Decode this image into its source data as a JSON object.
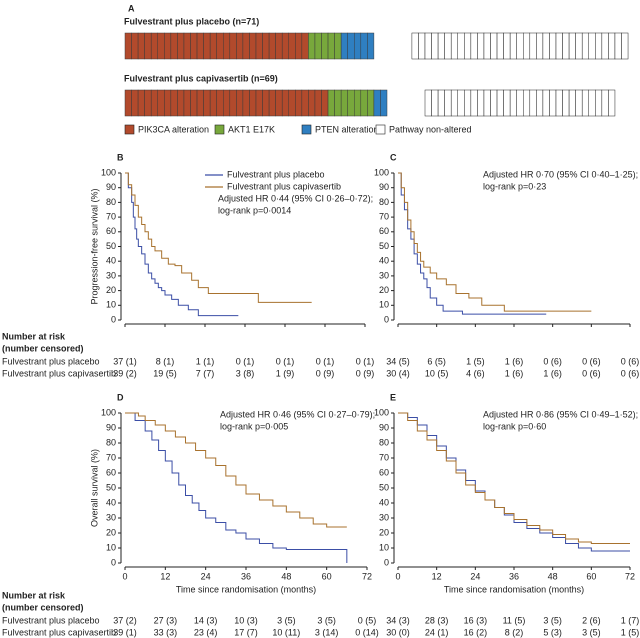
{
  "chart_data": [
    {
      "type": "strip",
      "label": "A",
      "series": [
        {
          "name": "PIK3CA alteration",
          "color": "#b24a2c"
        },
        {
          "name": "AKT1 E17K",
          "color": "#78a83c"
        },
        {
          "name": "PTEN alteration",
          "color": "#2f7fc1"
        },
        {
          "name": "Pathway non-altered",
          "color": "#ffffff"
        }
      ],
      "groups": [
        {
          "title": "Fulvestrant plus placebo (n=71)",
          "values": [
            28,
            5,
            5,
            33
          ]
        },
        {
          "title": "Fulvestrant plus capivasertib (n=69)",
          "values": [
            31,
            7,
            2,
            29
          ]
        }
      ]
    },
    {
      "type": "km",
      "label": "B",
      "y_label": "Progression-free survival (%)",
      "xlim": [
        0,
        72
      ],
      "xticks": [
        0,
        12,
        24,
        36,
        48,
        60,
        72
      ],
      "ylim": [
        0,
        100
      ],
      "yticks": [
        0,
        10,
        20,
        30,
        40,
        50,
        60,
        70,
        80,
        90,
        100
      ],
      "annotation": [
        "Adjusted HR 0·44 (95% CI 0·26–0·72);",
        "log-rank p=0·0014"
      ],
      "series": [
        {
          "name": "Fulvestrant plus placebo",
          "color": "#3b4ea6",
          "x": [
            0,
            1,
            2,
            2.5,
            3,
            3.5,
            4,
            5,
            6,
            7,
            8,
            9,
            10,
            11,
            12,
            14,
            16,
            19,
            22,
            25,
            34
          ],
          "values": [
            100,
            90,
            80,
            70,
            62,
            55,
            50,
            45,
            38,
            32,
            28,
            25,
            22,
            20,
            17,
            14,
            10,
            7,
            3,
            3,
            3
          ]
        },
        {
          "name": "Fulvestrant plus capivasertib",
          "color": "#a8722e",
          "x": [
            0,
            1,
            2,
            3,
            4,
            5,
            6,
            7,
            8,
            9,
            11,
            13,
            15,
            17,
            20,
            22,
            25,
            30,
            40,
            56
          ],
          "values": [
            100,
            92,
            85,
            78,
            70,
            65,
            60,
            55,
            50,
            47,
            42,
            38,
            37,
            32,
            27,
            22,
            18,
            18,
            12,
            12
          ]
        }
      ],
      "risk_header": [
        "Number at risk",
        "(number censored)"
      ],
      "risk_row_labels": [
        "Fulvestrant plus placebo",
        "Fulvestrant plus capivasertib"
      ],
      "risk": [
        [
          "37 (1)",
          "8 (1)",
          "1 (1)",
          "0 (1)",
          "0 (1)",
          "0 (1)",
          "0 (1)"
        ],
        [
          "39 (2)",
          "19 (5)",
          "7 (7)",
          "3 (8)",
          "1 (9)",
          "0 (9)",
          "0 (9)"
        ]
      ]
    },
    {
      "type": "km",
      "label": "C",
      "xlim": [
        0,
        72
      ],
      "xticks": [
        0,
        12,
        24,
        36,
        48,
        60,
        72
      ],
      "ylim": [
        0,
        100
      ],
      "yticks": [
        0,
        10,
        20,
        30,
        40,
        50,
        60,
        70,
        80,
        90,
        100
      ],
      "annotation": [
        "Adjusted HR 0·70 (95% CI 0·40–1·25);",
        "log-rank p=0·23"
      ],
      "series": [
        {
          "color": "#3b4ea6",
          "x": [
            0,
            1,
            2,
            3,
            4,
            5,
            6,
            7,
            8,
            9,
            10,
            12,
            14,
            20,
            25,
            46
          ],
          "values": [
            100,
            85,
            75,
            62,
            55,
            45,
            38,
            32,
            28,
            22,
            15,
            10,
            6,
            4,
            4,
            4
          ]
        },
        {
          "color": "#a8722e",
          "x": [
            0,
            1,
            2,
            3,
            4,
            5,
            6,
            7,
            8,
            10,
            12,
            15,
            18,
            22,
            26,
            33,
            60
          ],
          "values": [
            100,
            90,
            80,
            68,
            60,
            52,
            46,
            40,
            36,
            32,
            28,
            24,
            18,
            15,
            10,
            6,
            6
          ]
        }
      ],
      "risk": [
        [
          "34 (5)",
          "6 (5)",
          "1 (5)",
          "1 (6)",
          "0 (6)",
          "0 (6)",
          "0 (6)"
        ],
        [
          "30 (4)",
          "10 (5)",
          "4 (6)",
          "1 (6)",
          "1 (6)",
          "0 (6)",
          "0 (6)"
        ]
      ]
    },
    {
      "type": "km",
      "label": "D",
      "y_label": "Overall survival (%)",
      "x_label": "Time since randomisation (months)",
      "xlim": [
        0,
        72
      ],
      "xticks": [
        0,
        12,
        24,
        36,
        48,
        60,
        72
      ],
      "ylim": [
        0,
        100
      ],
      "yticks": [
        0,
        10,
        20,
        30,
        40,
        50,
        60,
        70,
        80,
        90,
        100
      ],
      "print_xticks": true,
      "annotation": [
        "Adjusted HR 0·46 (95% CI 0·27–0·79);",
        "log-rank p=0·005"
      ],
      "series": [
        {
          "color": "#3b4ea6",
          "x": [
            0,
            3,
            6,
            8,
            10,
            12,
            14,
            16,
            18,
            20,
            22,
            24,
            27,
            30,
            33,
            36,
            40,
            44,
            48,
            55,
            62,
            66
          ],
          "values": [
            100,
            95,
            88,
            82,
            75,
            68,
            60,
            52,
            45,
            40,
            35,
            30,
            27,
            22,
            20,
            16,
            13,
            10,
            9,
            9,
            9,
            0
          ]
        },
        {
          "color": "#a8722e",
          "x": [
            0,
            4,
            6,
            9,
            12,
            15,
            18,
            21,
            24,
            27,
            30,
            33,
            36,
            40,
            44,
            48,
            52,
            56,
            60,
            66
          ],
          "values": [
            100,
            98,
            95,
            92,
            88,
            84,
            80,
            75,
            70,
            65,
            58,
            52,
            46,
            42,
            38,
            34,
            30,
            26,
            24,
            24
          ]
        }
      ],
      "risk_header": [
        "Number at risk",
        "(number censored)"
      ],
      "risk_row_labels": [
        "Fulvestrant plus placebo",
        "Fulvestrant plus capivasertib"
      ],
      "risk": [
        [
          "37 (2)",
          "27 (3)",
          "14 (3)",
          "10 (3)",
          "3 (5)",
          "3 (5)",
          "0 (5)"
        ],
        [
          "39 (1)",
          "33 (3)",
          "23 (4)",
          "17 (7)",
          "10 (11)",
          "3 (14)",
          "0 (14)"
        ]
      ]
    },
    {
      "type": "km",
      "label": "E",
      "x_label": "Time since randomisation (months)",
      "xlim": [
        0,
        72
      ],
      "xticks": [
        0,
        12,
        24,
        36,
        48,
        60,
        72
      ],
      "ylim": [
        0,
        100
      ],
      "yticks": [
        0,
        10,
        20,
        30,
        40,
        50,
        60,
        70,
        80,
        90,
        100
      ],
      "print_xticks": true,
      "annotation": [
        "Adjusted HR 0·86 (95% CI 0·49–1·52);",
        "log-rank p=0·60"
      ],
      "series": [
        {
          "color": "#3b4ea6",
          "x": [
            0,
            3,
            6,
            9,
            12,
            15,
            18,
            21,
            24,
            27,
            30,
            33,
            36,
            40,
            44,
            48,
            52,
            56,
            60,
            66,
            72
          ],
          "values": [
            100,
            97,
            92,
            85,
            78,
            70,
            62,
            55,
            48,
            42,
            37,
            32,
            27,
            23,
            20,
            17,
            13,
            10,
            8,
            8,
            8
          ]
        },
        {
          "color": "#a8722e",
          "x": [
            0,
            3,
            6,
            9,
            12,
            15,
            18,
            21,
            24,
            27,
            30,
            33,
            36,
            40,
            44,
            48,
            52,
            56,
            60,
            66,
            72
          ],
          "values": [
            100,
            95,
            88,
            82,
            75,
            68,
            60,
            52,
            47,
            42,
            37,
            33,
            29,
            25,
            22,
            19,
            16,
            14,
            13,
            13,
            13
          ]
        }
      ],
      "risk": [
        [
          "34 (3)",
          "28 (3)",
          "16 (3)",
          "11 (5)",
          "3 (5)",
          "2 (6)",
          "1 (7)"
        ],
        [
          "30 (0)",
          "24 (1)",
          "16 (2)",
          "8 (2)",
          "5 (3)",
          "3 (5)",
          "1 (5)"
        ]
      ]
    }
  ]
}
